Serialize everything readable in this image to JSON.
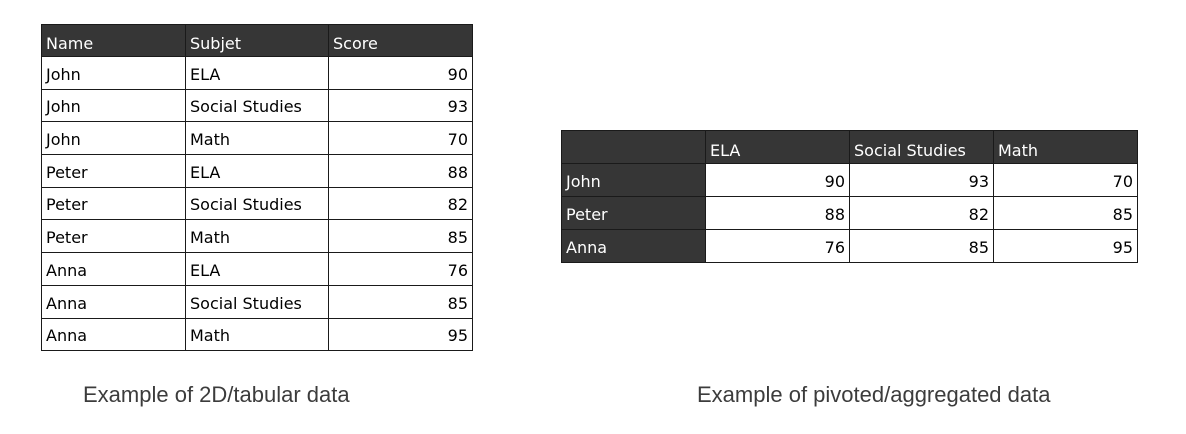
{
  "tabular": {
    "headers": [
      "Name",
      "Subjet",
      "Score"
    ],
    "rows": [
      [
        "John",
        "ELA",
        "90"
      ],
      [
        "John",
        "Social Studies",
        "93"
      ],
      [
        "John",
        "Math",
        "70"
      ],
      [
        "Peter",
        "ELA",
        "88"
      ],
      [
        "Peter",
        "Social Studies",
        "82"
      ],
      [
        "Peter",
        "Math",
        "85"
      ],
      [
        "Anna",
        "ELA",
        "76"
      ],
      [
        "Anna",
        "Social Studies",
        "85"
      ],
      [
        "Anna",
        "Math",
        "95"
      ]
    ],
    "caption": "Example of 2D/tabular data"
  },
  "pivot": {
    "corner": "",
    "columns": [
      "ELA",
      "Social Studies",
      "Math"
    ],
    "rows": [
      {
        "name": "John",
        "values": [
          "90",
          "93",
          "70"
        ]
      },
      {
        "name": "Peter",
        "values": [
          "88",
          "82",
          "85"
        ]
      },
      {
        "name": "Anna",
        "values": [
          "76",
          "85",
          "95"
        ]
      }
    ],
    "caption": "Example of pivoted/aggregated data"
  },
  "colors": {
    "header_bg": "#363636",
    "header_text": "#ffffff",
    "caption_text": "#3c3c3c"
  }
}
